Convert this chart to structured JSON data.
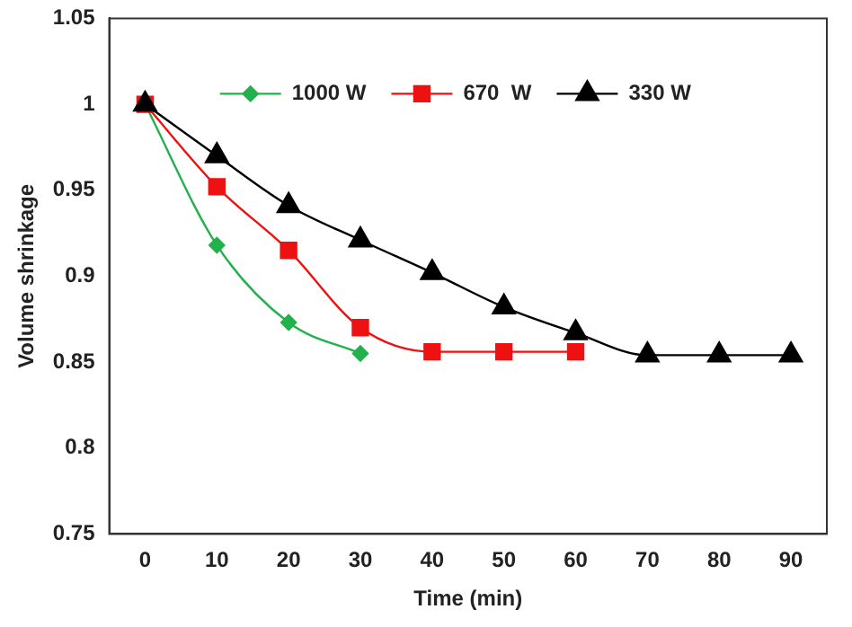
{
  "chart_data": {
    "type": "line",
    "xlabel": "Time (min)",
    "ylabel": "Volume shrinkage",
    "categories": [
      "0",
      "10",
      "20",
      "30",
      "40",
      "50",
      "60",
      "70",
      "80",
      "90"
    ],
    "ylim": [
      0.75,
      1.05
    ],
    "yticks": [
      0.75,
      0.8,
      0.85,
      0.9,
      0.95,
      1,
      1.05
    ],
    "grid": false,
    "legend": "top",
    "series": [
      {
        "name": "1000 W",
        "color": "#22b14c",
        "marker": "diamond",
        "values": [
          1,
          0.918,
          0.873,
          0.855,
          null,
          null,
          null,
          null,
          null,
          null
        ]
      },
      {
        "name": "670  W",
        "color": "#ee1111",
        "marker": "square",
        "values": [
          1,
          0.952,
          0.915,
          0.87,
          0.856,
          0.856,
          0.856,
          null,
          null,
          null
        ]
      },
      {
        "name": "330 W",
        "color": "#000000",
        "marker": "triangle",
        "values": [
          1,
          0.97,
          0.941,
          0.921,
          0.902,
          0.882,
          0.867,
          0.854,
          0.854,
          0.854
        ]
      }
    ]
  }
}
